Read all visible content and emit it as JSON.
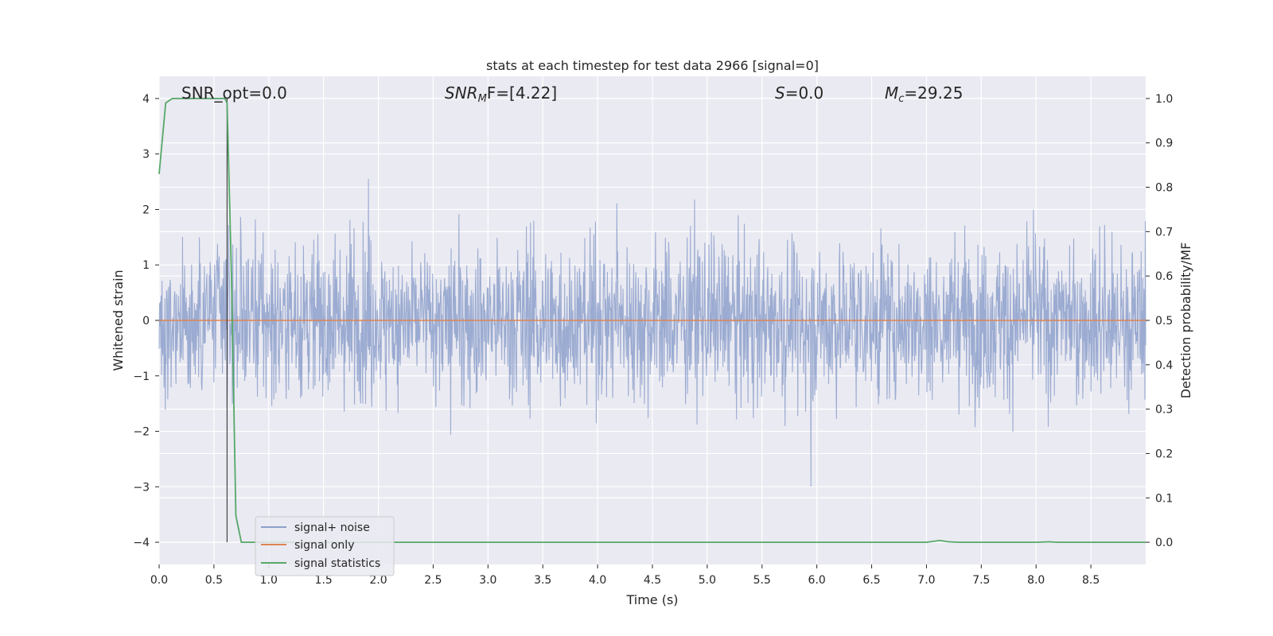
{
  "chart_data": {
    "type": "line",
    "title": "stats at each timestep for test data 2966 [signal=0]",
    "xlabel": "Time (s)",
    "ylabel_left": "Whitened strain",
    "ylabel_right": "Detection probability/MF",
    "xlim": [
      0,
      9.0
    ],
    "ylim_left": [
      -4.4,
      4.4
    ],
    "ylim_right": [
      -0.05,
      1.05
    ],
    "x_ticks": [
      "0.0",
      "0.5",
      "1.0",
      "1.5",
      "2.0",
      "2.5",
      "3.0",
      "3.5",
      "4.0",
      "4.5",
      "5.0",
      "5.5",
      "6.0",
      "6.5",
      "7.0",
      "7.5",
      "8.0",
      "8.5"
    ],
    "y_ticks_left": [
      "4",
      "3",
      "2",
      "1",
      "0",
      "−1",
      "−2",
      "−3",
      "−4"
    ],
    "y_ticks_right": [
      "1.0",
      "0.9",
      "0.8",
      "0.7",
      "0.6",
      "0.5",
      "0.4",
      "0.3",
      "0.2",
      "0.1",
      "0.0"
    ],
    "grid": true,
    "legend_position": "lower-left",
    "annotations": {
      "snr_opt": "SNR_opt=0.0",
      "snr_mf_main": "SNR",
      "snr_mf_sub": "M",
      "snr_mf_tail": "F=[4.22]",
      "s_var": "S",
      "s_val": "=0.0",
      "mc_main": "M",
      "mc_sub": "c",
      "mc_val": "=29.25"
    },
    "vertical_marker_x": 0.62,
    "series": [
      {
        "name": "signal+ noise",
        "color": "#8da0cb",
        "axis": "left",
        "style": "noise-trace"
      },
      {
        "name": "signal only",
        "color": "#dd8452",
        "axis": "left",
        "x": [
          0,
          9.0
        ],
        "y": [
          0,
          0
        ]
      },
      {
        "name": "signal statistics",
        "color": "#55a868",
        "axis": "right",
        "x": [
          0,
          0.06,
          0.12,
          0.2,
          0.3,
          0.4,
          0.5,
          0.6,
          0.62,
          0.66,
          0.7,
          0.75,
          0.8,
          1.0,
          7.0,
          7.06,
          7.12,
          7.2,
          7.3,
          8.0,
          8.12,
          8.2,
          8.5,
          9.0
        ],
        "y": [
          0.83,
          0.99,
          1.0,
          1.0,
          1.0,
          1.0,
          1.0,
          1.0,
          0.99,
          0.6,
          0.06,
          0.0,
          0.0,
          0.0,
          0.0,
          0.002,
          0.004,
          0.001,
          0.0,
          0.0,
          0.001,
          0.0,
          0.0,
          0.0
        ]
      }
    ]
  }
}
